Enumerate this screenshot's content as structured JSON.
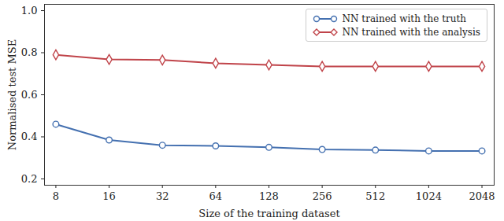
{
  "chart_data": {
    "type": "line",
    "x_label": "Size of the training dataset",
    "y_label": "Normalised test MSE",
    "x": [
      8,
      16,
      32,
      64,
      128,
      256,
      512,
      1024,
      2048
    ],
    "series": [
      {
        "name": "NN trained with the truth",
        "color": "#4470b0",
        "marker": "circle",
        "values": [
          0.46,
          0.385,
          0.36,
          0.357,
          0.35,
          0.34,
          0.337,
          0.333,
          0.333
        ]
      },
      {
        "name": "NN trained with the analysis",
        "color": "#c0444a",
        "marker": "diamond",
        "values": [
          0.79,
          0.768,
          0.765,
          0.75,
          0.742,
          0.735,
          0.735,
          0.735,
          0.735
        ]
      }
    ],
    "log": "x",
    "xlim": [
      6.9,
      2400
    ],
    "xticks": [
      8,
      16,
      32,
      64,
      128,
      256,
      512,
      1024,
      2048
    ],
    "ylim": [
      0.17,
      1.03
    ],
    "yticks": [
      0.2,
      0.4,
      0.6,
      0.8,
      {
        "value": 1,
        "label": "1.0"
      }
    ],
    "grid": false,
    "legend": "upper right"
  }
}
